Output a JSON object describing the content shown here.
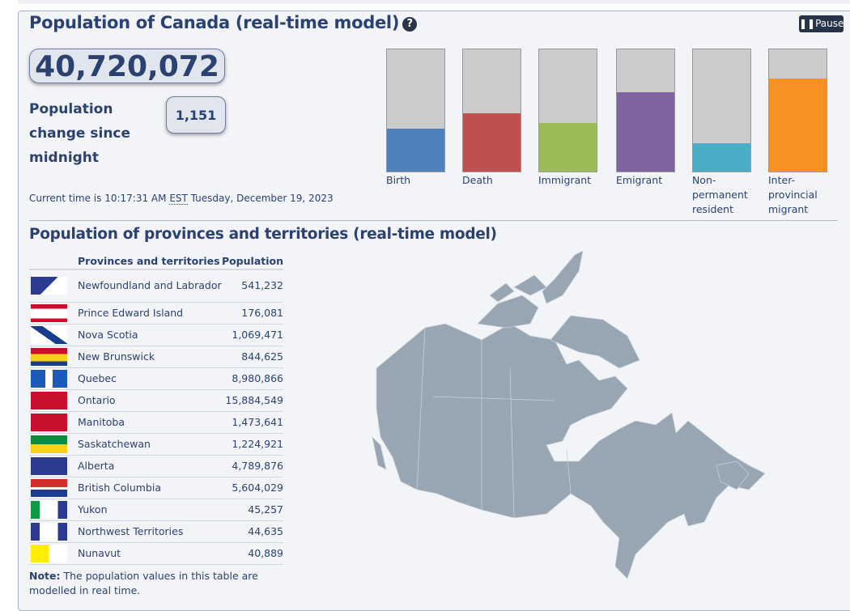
{
  "header": {
    "title": "Population of Canada (real-time model)",
    "help_icon": "question-circle-icon",
    "pause_label": "Pause"
  },
  "population": {
    "total": "40,720,072",
    "change_label": "Population change since midnight",
    "change_value": "1,151"
  },
  "time": {
    "prefix": "Current time is 10:17:31 AM",
    "zone": "EST",
    "date": "Tuesday, December 19, 2023"
  },
  "bars": [
    {
      "label": "Birth",
      "color": "#4f81bd",
      "level": 0.35
    },
    {
      "label": "Death",
      "color": "#c0504d",
      "level": 0.48
    },
    {
      "label": "Immigrant",
      "color": "#9bbb59",
      "level": 0.4
    },
    {
      "label": "Emigrant",
      "color": "#8064a2",
      "level": 0.65
    },
    {
      "label": "Non-permanent resident",
      "color": "#4bacc6",
      "level": 0.23
    },
    {
      "label": "Inter-provincial migrant",
      "color": "#f79122",
      "level": 0.76
    }
  ],
  "provinces": {
    "title": "Population of provinces and territories (real-time model)",
    "col_name": "Provinces and territories",
    "col_pop": "Population",
    "rows": [
      {
        "name": "Newfoundland and Labrador",
        "pop": "541,232"
      },
      {
        "name": "Prince Edward Island",
        "pop": "176,081"
      },
      {
        "name": "Nova Scotia",
        "pop": "1,069,471"
      },
      {
        "name": "New Brunswick",
        "pop": "844,625"
      },
      {
        "name": "Quebec",
        "pop": "8,980,866"
      },
      {
        "name": "Ontario",
        "pop": "15,884,549"
      },
      {
        "name": "Manitoba",
        "pop": "1,473,641"
      },
      {
        "name": "Saskatchewan",
        "pop": "1,224,921"
      },
      {
        "name": "Alberta",
        "pop": "4,789,876"
      },
      {
        "name": "British Columbia",
        "pop": "5,604,029"
      },
      {
        "name": "Yukon",
        "pop": "45,257"
      },
      {
        "name": "Northwest Territories",
        "pop": "44,635"
      },
      {
        "name": "Nunavut",
        "pop": "40,889"
      }
    ],
    "note_bold": "Note:",
    "note_text": " The population values in this table are modelled in real time."
  },
  "map": {
    "color": "#97a6b2"
  }
}
